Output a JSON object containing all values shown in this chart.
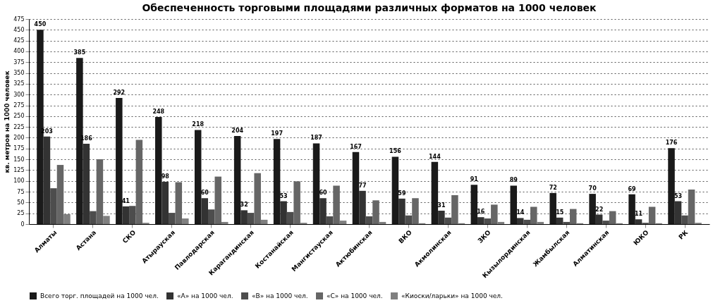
{
  "chart_data": {
    "type": "bar",
    "title": "Обеспеченность торговыми площадями различных форматов на 1000 человек",
    "ylabel": "кв. метров на 1000 человек",
    "categories": [
      "Алматы",
      "Астана",
      "СКО",
      "Атырауская",
      "Павлодарская",
      "Карагандинская",
      "Костанайская",
      "Мангистауская",
      "Актюбинская",
      "ВКО",
      "Акмолинская",
      "ЗКО",
      "Кызылординская",
      "Жамбылская",
      "Алматинская",
      "ЮКО",
      "РК"
    ],
    "series": [
      {
        "name": "Всего торг. площадей на 1000 чел.",
        "color": "#1a1a1a",
        "values": [
          450,
          385,
          292,
          248,
          218,
          204,
          197,
          187,
          167,
          156,
          144,
          91,
          89,
          72,
          70,
          69,
          176
        ],
        "value_labels": [
          "450",
          "385",
          "292",
          "248",
          "218",
          "204",
          "197",
          "187",
          "167",
          "156",
          "144",
          "91",
          "89",
          "72",
          "70",
          "69",
          "176"
        ]
      },
      {
        "name": "«А» на 1000 чел.",
        "color": "#333333",
        "values": [
          203,
          186,
          41,
          98,
          60,
          32,
          53,
          60,
          77,
          59,
          31,
          16,
          14,
          15,
          22,
          11,
          53
        ],
        "value_labels": [
          "203",
          "186",
          "41",
          "98",
          "60",
          "32",
          "53",
          "60",
          "77",
          "59",
          "31",
          "16",
          "14",
          "15",
          "22",
          "11",
          "53"
        ]
      },
      {
        "name": "«В» на 1000 чел.",
        "color": "#4d4d4d",
        "values": [
          83,
          30,
          42,
          26,
          34,
          26,
          28,
          18,
          18,
          20,
          15,
          13,
          10,
          5,
          8,
          3,
          20
        ]
      },
      {
        "name": "«С» на 1000 чел.",
        "color": "#666666",
        "values": [
          137,
          150,
          195,
          97,
          110,
          118,
          99,
          89,
          55,
          60,
          67,
          45,
          40,
          35,
          30,
          40,
          80
        ]
      },
      {
        "name": "«Киоски/ларьки» на 1000 чел.",
        "color": "#808080",
        "values": [
          23,
          19,
          3,
          13,
          5,
          10,
          3,
          8,
          5,
          2,
          2,
          5,
          5,
          2,
          2,
          2,
          3
        ]
      }
    ],
    "ylim": [
      0,
      475
    ],
    "yticks": [
      0,
      25,
      50,
      75,
      100,
      125,
      150,
      175,
      200,
      225,
      250,
      275,
      300,
      325,
      350,
      375,
      400,
      425,
      450,
      475
    ],
    "grid": "y",
    "legend": "bottom"
  }
}
